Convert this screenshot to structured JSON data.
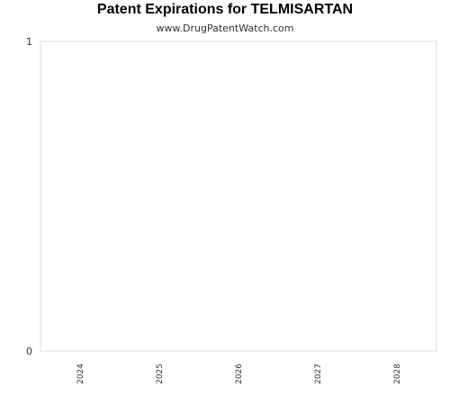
{
  "header": {
    "title": "Patent Expirations for TELMISARTAN",
    "subtitle": "www.DrugPatentWatch.com"
  },
  "colors": {
    "plot_border": "#dddddd",
    "text": "#333333",
    "title": "#000000"
  },
  "chart_data": {
    "type": "bar",
    "title": "Patent Expirations for TELMISARTAN",
    "subtitle": "www.DrugPatentWatch.com",
    "categories": [
      "2024",
      "2025",
      "2026",
      "2027",
      "2028"
    ],
    "values": [
      0,
      0,
      0,
      0,
      0
    ],
    "xlabel": "",
    "ylabel": "",
    "ylim": [
      0,
      1
    ],
    "yticks": [
      "0",
      "1"
    ],
    "grid": false,
    "legend": "none"
  }
}
